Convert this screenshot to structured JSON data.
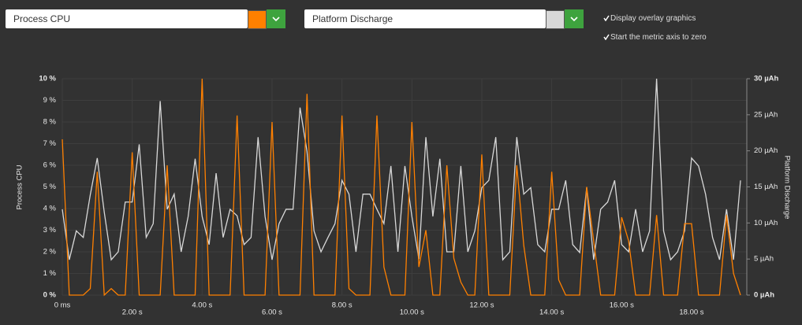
{
  "controls": {
    "metric_left": {
      "label": "Process CPU",
      "color": "#ff8000"
    },
    "metric_right": {
      "label": "Platform Discharge",
      "color": "#d8d8d8"
    },
    "checkboxes": [
      {
        "label": "Display overlay graphics",
        "checked": true
      },
      {
        "label": "Start the metric axis to zero",
        "checked": true
      }
    ]
  },
  "chart_data": {
    "type": "line",
    "ylabel": "Process CPU",
    "y2label": "Platform Discharge",
    "grid": true,
    "xlim": [
      0,
      19.58
    ],
    "xticks": [
      {
        "value": 0,
        "label": "0 ms"
      },
      {
        "value": 2,
        "label": "2.00 s"
      },
      {
        "value": 4,
        "label": "4.00 s"
      },
      {
        "value": 6,
        "label": "6.00 s"
      },
      {
        "value": 8,
        "label": "8.00 s"
      },
      {
        "value": 10,
        "label": "10.00 s"
      },
      {
        "value": 12,
        "label": "12.00 s"
      },
      {
        "value": 14,
        "label": "14.00 s"
      },
      {
        "value": 16,
        "label": "16.00 s"
      },
      {
        "value": 18,
        "label": "18.00 s"
      }
    ],
    "ylim": [
      0,
      10
    ],
    "yticks": [
      {
        "value": 0,
        "label": "0 %"
      },
      {
        "value": 1,
        "label": "1 %"
      },
      {
        "value": 2,
        "label": "2 %"
      },
      {
        "value": 3,
        "label": "3 %"
      },
      {
        "value": 4,
        "label": "4 %"
      },
      {
        "value": 5,
        "label": "5 %"
      },
      {
        "value": 6,
        "label": "6 %"
      },
      {
        "value": 7,
        "label": "7 %"
      },
      {
        "value": 8,
        "label": "8 %"
      },
      {
        "value": 9,
        "label": "9 %"
      },
      {
        "value": 10,
        "label": "10 %"
      }
    ],
    "y2lim": [
      0,
      30
    ],
    "y2ticks": [
      {
        "value": 0,
        "label": "0 µAh"
      },
      {
        "value": 5,
        "label": "5 µAh"
      },
      {
        "value": 10,
        "label": "10 µAh"
      },
      {
        "value": 15,
        "label": "15 µAh"
      },
      {
        "value": 20,
        "label": "20 µAh"
      },
      {
        "value": 25,
        "label": "25 µAh"
      },
      {
        "value": 30,
        "label": "30 µAh"
      }
    ],
    "x": [
      0,
      0.2,
      0.4,
      0.6,
      0.8,
      1,
      1.2,
      1.4,
      1.6,
      1.8,
      2,
      2.2,
      2.4,
      2.6,
      2.8,
      3,
      3.2,
      3.4,
      3.6,
      3.8,
      4,
      4.2,
      4.4,
      4.6,
      4.8,
      5,
      5.2,
      5.4,
      5.6,
      5.8,
      6,
      6.2,
      6.4,
      6.6,
      6.8,
      7,
      7.2,
      7.4,
      7.6,
      7.8,
      8,
      8.2,
      8.4,
      8.6,
      8.8,
      9,
      9.2,
      9.4,
      9.6,
      9.8,
      10,
      10.2,
      10.4,
      10.6,
      10.8,
      11,
      11.2,
      11.4,
      11.6,
      11.8,
      12,
      12.2,
      12.4,
      12.6,
      12.8,
      13,
      13.2,
      13.4,
      13.6,
      13.8,
      14,
      14.2,
      14.4,
      14.6,
      14.8,
      15,
      15.2,
      15.4,
      15.6,
      15.8,
      16,
      16.2,
      16.4,
      16.6,
      16.8,
      17,
      17.2,
      17.4,
      17.6,
      17.8,
      18,
      18.2,
      18.4,
      18.6,
      18.8,
      19,
      19.2,
      19.4
    ],
    "series": [
      {
        "name": "Platform Discharge",
        "color": "#d8d8d8",
        "axis": "y2",
        "values": [
          11.9,
          4.9,
          8.9,
          8.0,
          13.9,
          19.0,
          11.5,
          4.9,
          6.0,
          12.9,
          12.9,
          20.9,
          8.0,
          9.9,
          26.9,
          11.9,
          14.0,
          6.0,
          10.9,
          18.9,
          10.9,
          7.0,
          16.9,
          8.0,
          11.9,
          11.0,
          7.0,
          8.0,
          21.9,
          10.9,
          4.9,
          9.9,
          11.9,
          11.9,
          26.0,
          19.9,
          8.9,
          6.0,
          8.0,
          9.9,
          15.9,
          14.0,
          6.0,
          14.0,
          14.0,
          11.9,
          9.9,
          17.9,
          6.0,
          17.9,
          10.9,
          5.0,
          21.9,
          10.9,
          18.9,
          6.0,
          6.0,
          17.9,
          6.0,
          8.9,
          14.9,
          15.9,
          21.9,
          4.9,
          6.0,
          21.9,
          14.0,
          14.9,
          7.0,
          6.0,
          11.9,
          11.9,
          15.9,
          7.0,
          5.9,
          14.9,
          4.9,
          11.9,
          12.9,
          15.9,
          7.0,
          6.0,
          11.9,
          6.0,
          8.9,
          30.0,
          8.9,
          4.9,
          6.0,
          8.9,
          19.0,
          17.9,
          14.0,
          8.0,
          4.9,
          11.9,
          4.9,
          15.9
        ]
      },
      {
        "name": "Process CPU",
        "color": "#ff8000",
        "axis": "y",
        "values": [
          7.2,
          0,
          0,
          0,
          0.3,
          5.7,
          0,
          0.3,
          0,
          0,
          6.6,
          0,
          0,
          0,
          0,
          6.0,
          0,
          0,
          0,
          0,
          10,
          0,
          0,
          0,
          0,
          8.3,
          0,
          0,
          0,
          0,
          8.0,
          0,
          0,
          0,
          0,
          9.3,
          0,
          0,
          0,
          0,
          8.3,
          0.3,
          0,
          0,
          0,
          8.3,
          1.3,
          0,
          0,
          0,
          8.0,
          1.3,
          3.0,
          0,
          0,
          6.0,
          1.7,
          0.6,
          0,
          0,
          6.5,
          0,
          0,
          0,
          0,
          6.0,
          2.3,
          0,
          0,
          0,
          5.7,
          0.7,
          0,
          0,
          0,
          5.0,
          2.5,
          0,
          0,
          0,
          3.6,
          2.5,
          0,
          0,
          0,
          3.7,
          0,
          0,
          0,
          3.3,
          3.3,
          0,
          0,
          0,
          0,
          3.7,
          1.0,
          0
        ]
      }
    ]
  }
}
